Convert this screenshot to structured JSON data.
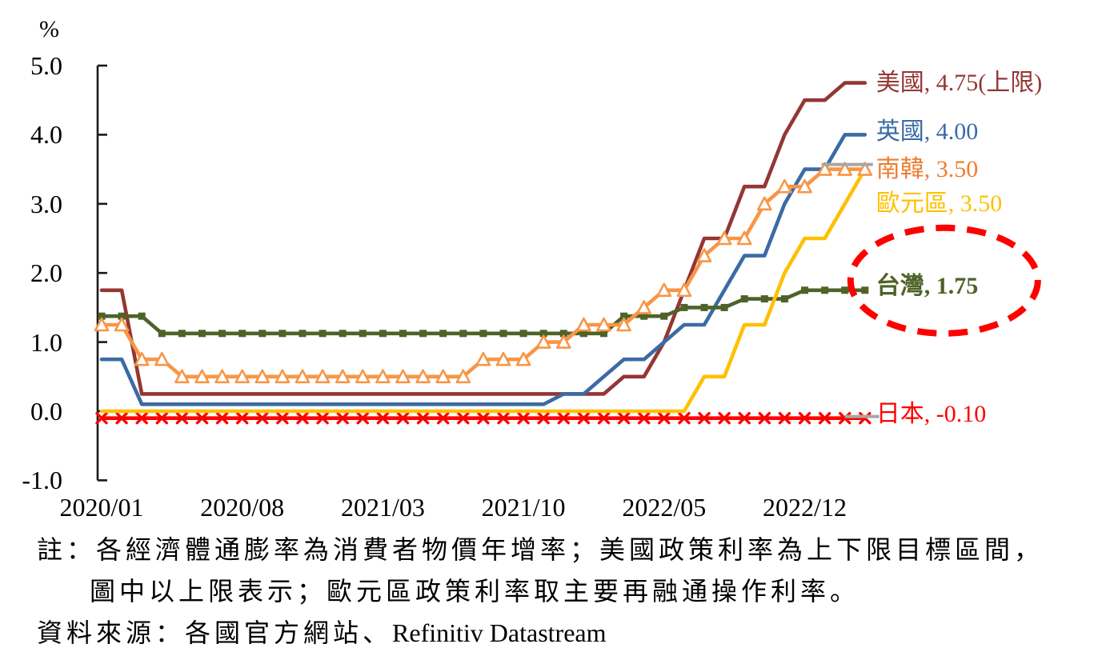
{
  "chart_data": {
    "type": "line",
    "description": "主要經濟體政策利率",
    "y_axis": {
      "unit": "%",
      "range": [
        -1.0,
        5.0
      ],
      "ticks": [
        {
          "label": "5.0",
          "value": 5.0
        },
        {
          "label": "4.0",
          "value": 4.0
        },
        {
          "label": "3.0",
          "value": 3.0
        },
        {
          "label": "2.0",
          "value": 2.0
        },
        {
          "label": "1.0",
          "value": 1.0
        },
        {
          "label": "0.0",
          "value": 0.0
        },
        {
          "label": "-1.0",
          "value": -1.0
        }
      ]
    },
    "x_axis": {
      "ticks": [
        {
          "label": "2020/01",
          "month_index": 0
        },
        {
          "label": "2020/08",
          "month_index": 7
        },
        {
          "label": "2021/03",
          "month_index": 14
        },
        {
          "label": "2021/10",
          "month_index": 21
        },
        {
          "label": "2022/05",
          "month_index": 28
        },
        {
          "label": "2022/12",
          "month_index": 35
        }
      ]
    },
    "months": [
      "2020/01",
      "2020/02",
      "2020/03",
      "2020/04",
      "2020/05",
      "2020/06",
      "2020/07",
      "2020/08",
      "2020/09",
      "2020/10",
      "2020/11",
      "2020/12",
      "2021/01",
      "2021/02",
      "2021/03",
      "2021/04",
      "2021/05",
      "2021/06",
      "2021/07",
      "2021/08",
      "2021/09",
      "2021/10",
      "2021/11",
      "2021/12",
      "2022/01",
      "2022/02",
      "2022/03",
      "2022/04",
      "2022/05",
      "2022/06",
      "2022/07",
      "2022/08",
      "2022/09",
      "2022/10",
      "2022/11",
      "2022/12",
      "2023/01",
      "2023/02",
      "2023/03"
    ],
    "series": [
      {
        "id": "us",
        "name": "美國",
        "label": "美國, 4.75(上限)",
        "color": "#943634",
        "marker": "none",
        "last_value": 4.75,
        "values": [
          1.75,
          1.75,
          0.25,
          0.25,
          0.25,
          0.25,
          0.25,
          0.25,
          0.25,
          0.25,
          0.25,
          0.25,
          0.25,
          0.25,
          0.25,
          0.25,
          0.25,
          0.25,
          0.25,
          0.25,
          0.25,
          0.25,
          0.25,
          0.25,
          0.25,
          0.25,
          0.5,
          0.5,
          1.0,
          1.75,
          2.5,
          2.5,
          3.25,
          3.25,
          4.0,
          4.5,
          4.5,
          4.75,
          4.75
        ]
      },
      {
        "id": "uk",
        "name": "英國",
        "label": "英國, 4.00",
        "color": "#3B6BA5",
        "marker": "none",
        "last_value": 4.0,
        "values": [
          0.75,
          0.75,
          0.1,
          0.1,
          0.1,
          0.1,
          0.1,
          0.1,
          0.1,
          0.1,
          0.1,
          0.1,
          0.1,
          0.1,
          0.1,
          0.1,
          0.1,
          0.1,
          0.1,
          0.1,
          0.1,
          0.1,
          0.1,
          0.25,
          0.25,
          0.5,
          0.75,
          0.75,
          1.0,
          1.25,
          1.25,
          1.75,
          2.25,
          2.25,
          3.0,
          3.5,
          3.5,
          4.0,
          4.0
        ]
      },
      {
        "id": "korea",
        "name": "南韓",
        "label": "南韓, 3.50",
        "color": "#F79646",
        "label_color": "#ED7D31",
        "marker": "triangle",
        "leader": true,
        "last_value": 3.5,
        "values": [
          1.25,
          1.25,
          0.75,
          0.75,
          0.5,
          0.5,
          0.5,
          0.5,
          0.5,
          0.5,
          0.5,
          0.5,
          0.5,
          0.5,
          0.5,
          0.5,
          0.5,
          0.5,
          0.5,
          0.75,
          0.75,
          0.75,
          1.0,
          1.0,
          1.25,
          1.25,
          1.25,
          1.5,
          1.75,
          1.75,
          2.25,
          2.5,
          2.5,
          3.0,
          3.25,
          3.25,
          3.5,
          3.5,
          3.5
        ]
      },
      {
        "id": "euro",
        "name": "歐元區",
        "label": "歐元區, 3.50",
        "color": "#FFC000",
        "marker": "none",
        "last_value": 3.5,
        "values": [
          0,
          0,
          0,
          0,
          0,
          0,
          0,
          0,
          0,
          0,
          0,
          0,
          0,
          0,
          0,
          0,
          0,
          0,
          0,
          0,
          0,
          0,
          0,
          0,
          0,
          0,
          0,
          0,
          0,
          0,
          0.5,
          0.5,
          1.25,
          1.25,
          2.0,
          2.5,
          2.5,
          3.0,
          3.5
        ]
      },
      {
        "id": "taiwan",
        "name": "台灣",
        "label": "台灣, 1.75",
        "color": "#4F6228",
        "marker": "square",
        "bold": true,
        "circled": true,
        "last_value": 1.75,
        "values": [
          1.375,
          1.375,
          1.375,
          1.125,
          1.125,
          1.125,
          1.125,
          1.125,
          1.125,
          1.125,
          1.125,
          1.125,
          1.125,
          1.125,
          1.125,
          1.125,
          1.125,
          1.125,
          1.125,
          1.125,
          1.125,
          1.125,
          1.125,
          1.125,
          1.125,
          1.125,
          1.375,
          1.375,
          1.375,
          1.5,
          1.5,
          1.5,
          1.625,
          1.625,
          1.625,
          1.75,
          1.75,
          1.75,
          1.75
        ]
      },
      {
        "id": "japan",
        "name": "日本",
        "label": "日本, -0.10",
        "color": "#FF0000",
        "marker": "x",
        "leader": true,
        "last_value": -0.1,
        "values": [
          -0.1,
          -0.1,
          -0.1,
          -0.1,
          -0.1,
          -0.1,
          -0.1,
          -0.1,
          -0.1,
          -0.1,
          -0.1,
          -0.1,
          -0.1,
          -0.1,
          -0.1,
          -0.1,
          -0.1,
          -0.1,
          -0.1,
          -0.1,
          -0.1,
          -0.1,
          -0.1,
          -0.1,
          -0.1,
          -0.1,
          -0.1,
          -0.1,
          -0.1,
          -0.1,
          -0.1,
          -0.1,
          -0.1,
          -0.1,
          -0.1,
          -0.1,
          -0.1,
          -0.1,
          -0.1
        ]
      }
    ],
    "annotation": {
      "shape": "dashed-ellipse",
      "color": "#FF0000",
      "highlights": "台灣, 1.75"
    }
  },
  "notes": {
    "line1": "註：各經濟體通膨率為消費者物價年增率；美國政策利率為上下限目標區間，",
    "line2": "圖中以上限表示；歐元區政策利率取主要再融通操作利率。",
    "line3_prefix": "資料來源：各國官方網站、",
    "line3_latin": "Refinitiv Datastream"
  }
}
